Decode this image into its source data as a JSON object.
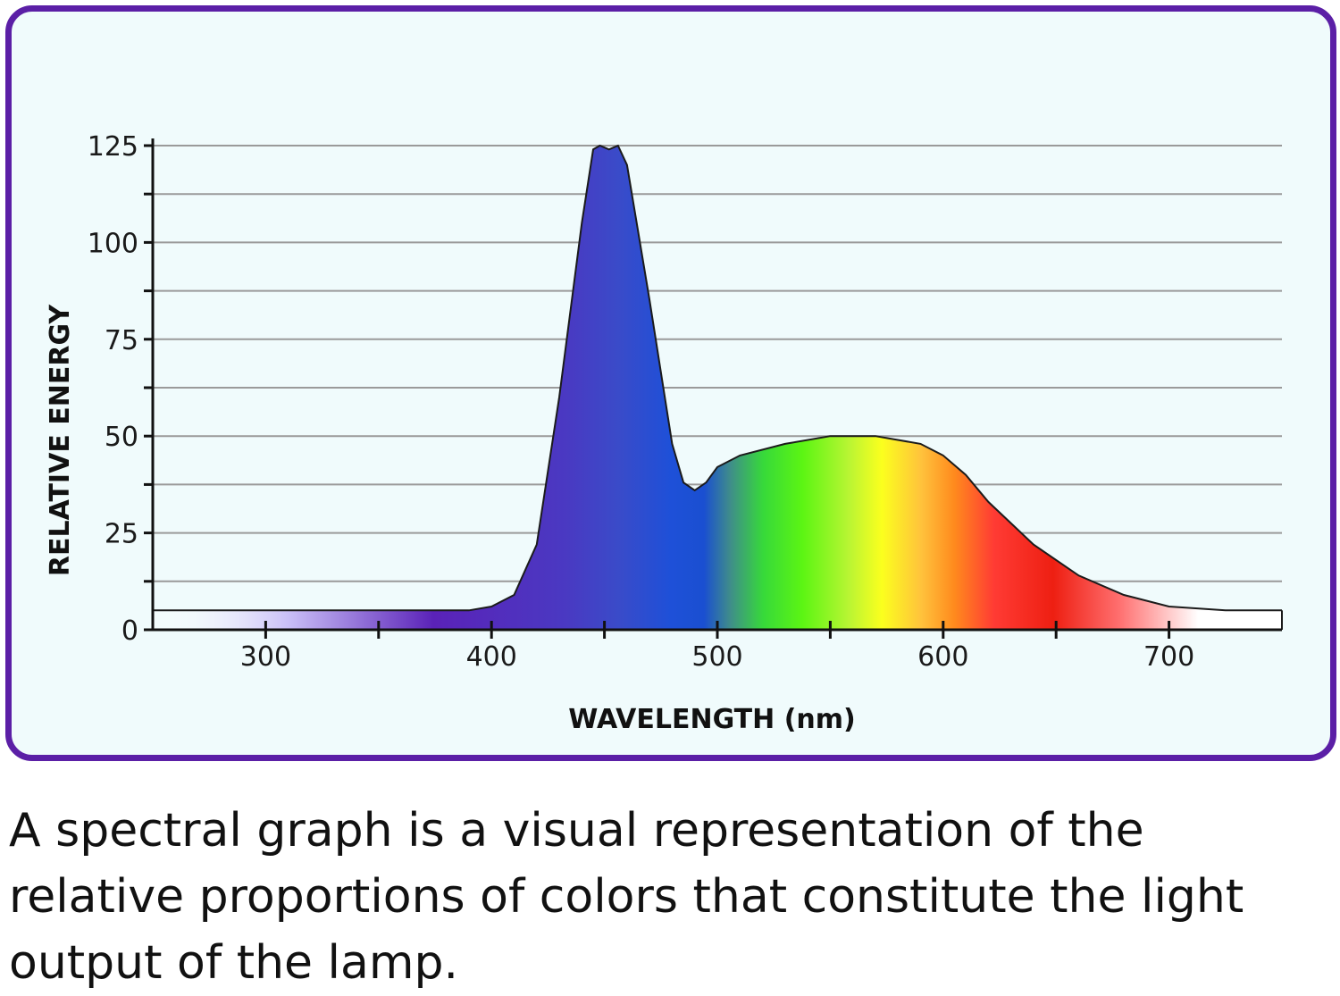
{
  "chart_data": {
    "type": "area",
    "xlabel": "WAVELENGTH (nm)",
    "ylabel": "RELATIVE ENERGY",
    "xlim": [
      250,
      750
    ],
    "ylim": [
      0,
      125
    ],
    "x_ticks": [
      300,
      400,
      500,
      600,
      700
    ],
    "y_ticks": [
      0,
      25,
      50,
      75,
      100,
      125
    ],
    "grid": true,
    "series": [
      {
        "x": [
          250,
          300,
          350,
          390,
          400,
          410,
          420,
          430,
          440,
          445,
          448,
          452,
          456,
          460,
          470,
          480,
          485,
          490,
          495,
          500,
          510,
          530,
          550,
          570,
          590,
          600,
          610,
          620,
          640,
          660,
          680,
          700,
          725,
          750
        ],
        "y": [
          5,
          5,
          5,
          5,
          6,
          9,
          22,
          60,
          105,
          124,
          125,
          124,
          125,
          120,
          85,
          48,
          38,
          36,
          38,
          42,
          45,
          48,
          50,
          50,
          48,
          45,
          40,
          33,
          22,
          14,
          9,
          6,
          5,
          5
        ]
      }
    ]
  },
  "caption": "A spectral graph is a visual representation of the relative proportions of colors that constitute the light output of the lamp."
}
